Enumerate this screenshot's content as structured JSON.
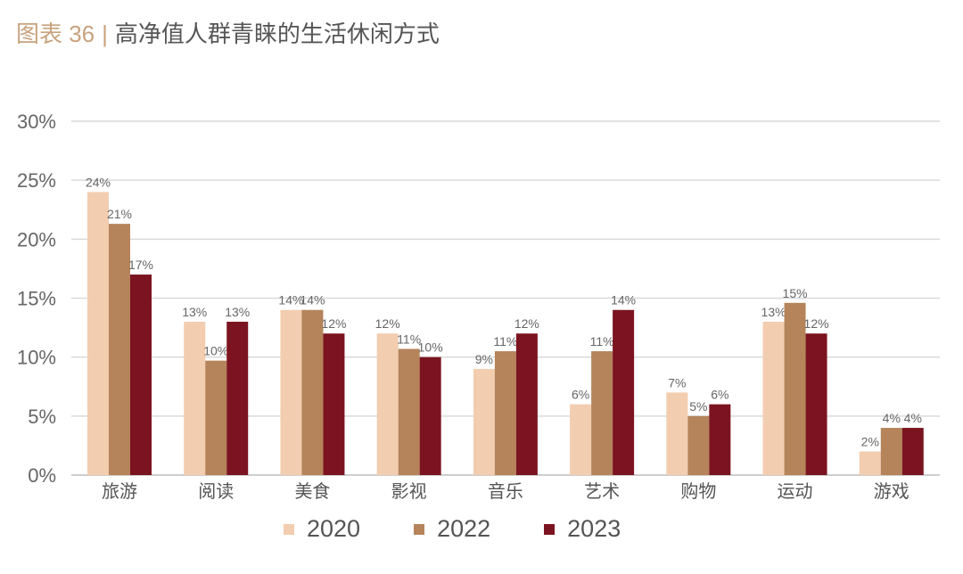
{
  "title": {
    "figure_label": "图表 36",
    "separator": "|",
    "text": "高净值人群青睐的生活休闲方式"
  },
  "chart_data": {
    "type": "bar",
    "categories": [
      "旅游",
      "阅读",
      "美食",
      "影视",
      "音乐",
      "艺术",
      "购物",
      "运动",
      "游戏"
    ],
    "series": [
      {
        "name": "2020",
        "color": "#f2cdb0",
        "values": [
          24,
          13,
          14,
          12,
          9,
          6,
          7,
          13,
          2
        ],
        "labels": [
          "24%",
          "13%",
          "14%",
          "12%",
          "9%",
          "6%",
          "7%",
          "13%",
          "2%"
        ]
      },
      {
        "name": "2022",
        "color": "#b5845a",
        "values": [
          21.3,
          9.7,
          14,
          10.7,
          10.5,
          10.5,
          5,
          14.6,
          4
        ],
        "labels": [
          "21%",
          "10%",
          "14%",
          "11%",
          "11%",
          "11%",
          "5%",
          "15%",
          "4%"
        ]
      },
      {
        "name": "2023",
        "color": "#7b1420",
        "values": [
          17,
          13,
          12,
          10,
          12,
          14,
          6,
          12,
          4
        ],
        "labels": [
          "17%",
          "13%",
          "12%",
          "10%",
          "12%",
          "14%",
          "6%",
          "12%",
          "4%"
        ]
      }
    ],
    "y_ticks": [
      "0%",
      "5%",
      "10%",
      "15%",
      "20%",
      "25%",
      "30%"
    ],
    "ylim": [
      0,
      30
    ],
    "grid": true,
    "legend_position": "bottom"
  }
}
